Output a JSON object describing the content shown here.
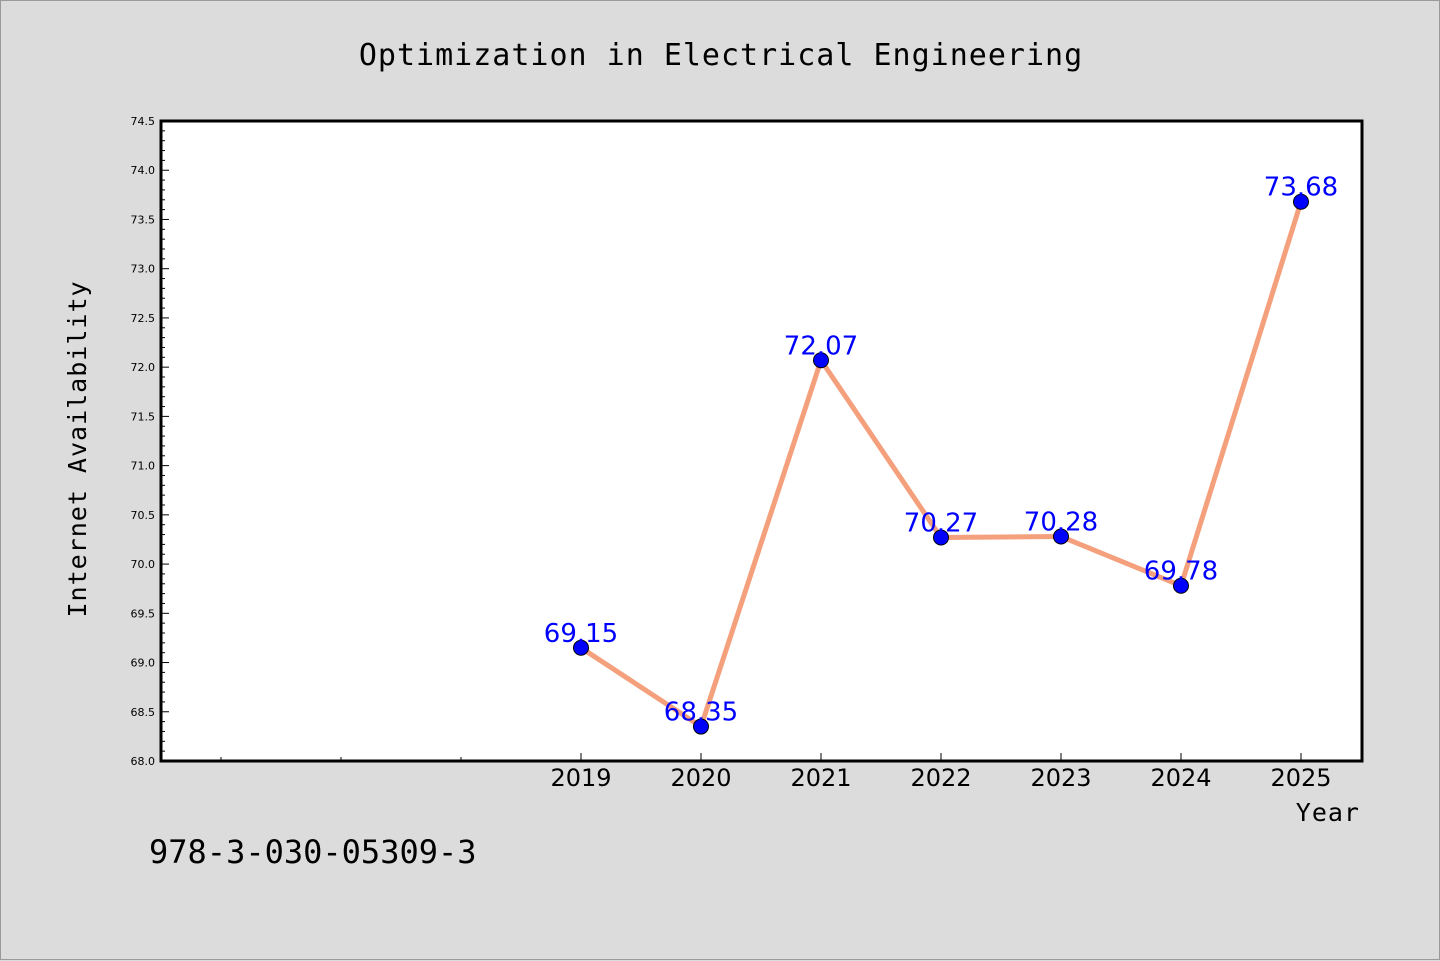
{
  "chart_data": {
    "type": "line",
    "title": "Optimization in Electrical Engineering",
    "xlabel": "Year",
    "ylabel": "Internet Availability",
    "ylim": [
      68.0,
      74.5
    ],
    "yticks": [
      "68.0",
      "68.5",
      "69.0",
      "69.5",
      "70.0",
      "70.5",
      "71.0",
      "71.5",
      "72.0",
      "72.5",
      "73.0",
      "73.5",
      "74.0",
      "74.5"
    ],
    "x": [
      "2019",
      "2020",
      "2021",
      "2022",
      "2023",
      "2024",
      "2025"
    ],
    "series": [
      {
        "values": [
          69.15,
          68.35,
          72.07,
          70.27,
          70.28,
          69.78,
          73.68
        ],
        "labels": [
          "69.15",
          "68.35",
          "72.07",
          "70.27",
          "70.28",
          "69.78",
          "73.68"
        ]
      }
    ],
    "grid": false,
    "colors": {
      "line": "#f4a07c",
      "marker": "#0000ff",
      "label": "#0000ff",
      "background": "#dcdcdc",
      "plot": "#ffffff"
    }
  },
  "footer": {
    "isbn": "978-3-030-05309-3"
  }
}
